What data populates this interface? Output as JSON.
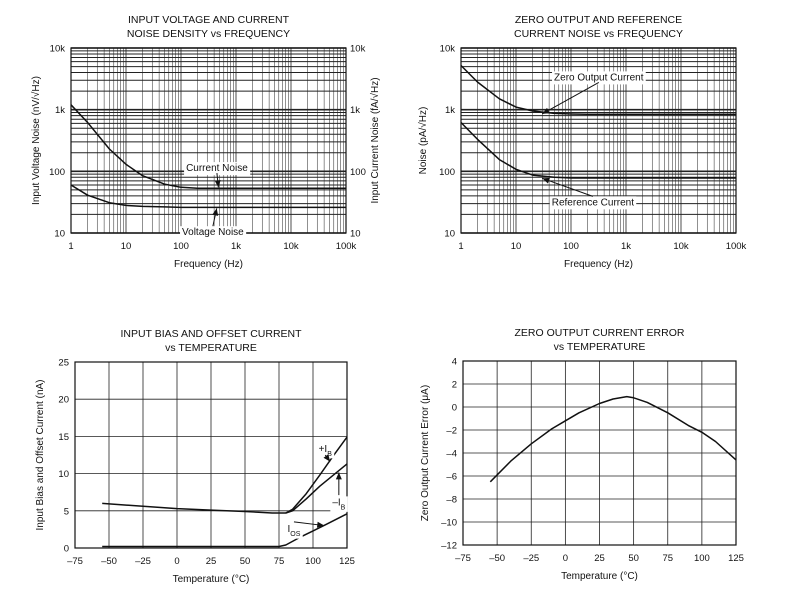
{
  "chart_data": [
    {
      "type": "line",
      "title": "INPUT VOLTAGE AND CURRENT",
      "subtitle": "NOISE DENSITY vs FREQUENCY",
      "xlabel": "Frequency (Hz)",
      "ylabel": "Input Voltage Noise (nV/√Hz)",
      "ylabel_right": "Input Current Noise (fA/√Hz)",
      "xscale": "log",
      "yscale": "log",
      "xlim": [
        1,
        100000
      ],
      "ylim": [
        10,
        10000
      ],
      "xticks": [
        {
          "v": 1,
          "label": "1"
        },
        {
          "v": 10,
          "label": "10"
        },
        {
          "v": 100,
          "label": "100"
        },
        {
          "v": 1000,
          "label": "1k"
        },
        {
          "v": 10000,
          "label": "10k"
        },
        {
          "v": 100000,
          "label": "100k"
        }
      ],
      "yticks": [
        {
          "v": 10,
          "label": "10"
        },
        {
          "v": 100,
          "label": "100"
        },
        {
          "v": 1000,
          "label": "1k"
        },
        {
          "v": 10000,
          "label": "10k"
        }
      ],
      "yticks_right": [
        {
          "v": 10,
          "label": "10"
        },
        {
          "v": 100,
          "label": "100"
        },
        {
          "v": 1000,
          "label": "1k"
        },
        {
          "v": 10000,
          "label": "10k"
        }
      ],
      "grid": true,
      "series": [
        {
          "name": "Current Noise",
          "x": [
            1,
            2,
            5,
            10,
            20,
            50,
            100,
            200,
            300,
            1000,
            10000,
            100000
          ],
          "y": [
            1200,
            620,
            230,
            130,
            85,
            62,
            55,
            53,
            53,
            53,
            53,
            53
          ]
        },
        {
          "name": "Voltage Noise",
          "x": [
            1,
            2,
            5,
            10,
            20,
            50,
            100,
            200,
            1000,
            10000,
            100000
          ],
          "y": [
            60,
            41,
            31,
            28,
            27,
            26.5,
            26,
            26,
            26,
            26,
            26
          ]
        }
      ],
      "annotations": [
        {
          "text": "Current Noise",
          "series": 0,
          "arrow_x": 480,
          "arrow_y": 53,
          "label_x": 450,
          "label_y": 115
        },
        {
          "text": "Voltage Noise",
          "series": 1,
          "arrow_x": 450,
          "arrow_y": 26,
          "label_x": 380,
          "label_y": 10.5
        }
      ]
    },
    {
      "type": "line",
      "title": "ZERO OUTPUT AND REFERENCE",
      "subtitle": "CURRENT NOISE vs FREQUENCY",
      "xlabel": "Frequency (Hz)",
      "ylabel": "Noise (pA/√Hz)",
      "xscale": "log",
      "yscale": "log",
      "xlim": [
        1,
        100000
      ],
      "ylim": [
        10,
        10000
      ],
      "xticks": [
        {
          "v": 1,
          "label": "1"
        },
        {
          "v": 10,
          "label": "10"
        },
        {
          "v": 100,
          "label": "100"
        },
        {
          "v": 1000,
          "label": "1k"
        },
        {
          "v": 10000,
          "label": "10k"
        },
        {
          "v": 100000,
          "label": "100k"
        }
      ],
      "yticks": [
        {
          "v": 10,
          "label": "10"
        },
        {
          "v": 100,
          "label": "100"
        },
        {
          "v": 1000,
          "label": "1k"
        },
        {
          "v": 10000,
          "label": "10k"
        }
      ],
      "grid": true,
      "series": [
        {
          "name": "Zero Output Current",
          "x": [
            1,
            2,
            5,
            10,
            20,
            50,
            100,
            200,
            1000,
            10000,
            100000
          ],
          "y": [
            5200,
            2800,
            1500,
            1100,
            950,
            870,
            850,
            840,
            840,
            840,
            840
          ]
        },
        {
          "name": "Reference Current",
          "x": [
            1,
            2,
            5,
            10,
            20,
            50,
            100,
            200,
            1000,
            10000,
            100000
          ],
          "y": [
            620,
            330,
            155,
            108,
            87,
            80,
            78,
            78,
            78,
            78,
            78
          ]
        }
      ],
      "annotations": [
        {
          "text": "Zero Output Current",
          "series": 0,
          "arrow_x": 29,
          "arrow_y": 840,
          "label_x": 320,
          "label_y": 3400
        },
        {
          "text": "Reference Current",
          "series": 1,
          "arrow_x": 29,
          "arrow_y": 78,
          "label_x": 250,
          "label_y": 32
        }
      ]
    },
    {
      "type": "line",
      "title": "INPUT BIAS AND OFFSET CURRENT",
      "subtitle": "vs TEMPERATURE",
      "xlabel": "Temperature (°C)",
      "ylabel": "Input Bias and Offset Current (nA)",
      "xlim": [
        -75,
        125
      ],
      "ylim": [
        0,
        25
      ],
      "xticks": [
        {
          "v": -75,
          "label": "–75"
        },
        {
          "v": -50,
          "label": "–50"
        },
        {
          "v": -25,
          "label": "–25"
        },
        {
          "v": 0,
          "label": "0"
        },
        {
          "v": 25,
          "label": "25"
        },
        {
          "v": 50,
          "label": "50"
        },
        {
          "v": 75,
          "label": "75"
        },
        {
          "v": 100,
          "label": "100"
        },
        {
          "v": 125,
          "label": "125"
        }
      ],
      "yticks": [
        {
          "v": 0,
          "label": "0"
        },
        {
          "v": 5,
          "label": "5"
        },
        {
          "v": 10,
          "label": "10"
        },
        {
          "v": 15,
          "label": "15"
        },
        {
          "v": 20,
          "label": "20"
        },
        {
          "v": 25,
          "label": "25"
        }
      ],
      "grid": true,
      "series": [
        {
          "name": "+IB",
          "x": [
            -55,
            -25,
            0,
            25,
            50,
            70,
            80,
            85,
            95,
            105,
            115,
            125
          ],
          "y": [
            6.0,
            5.6,
            5.3,
            5.1,
            4.9,
            4.7,
            4.7,
            5.2,
            7.3,
            9.8,
            12.4,
            14.9
          ]
        },
        {
          "name": "–IB",
          "x": [
            80,
            85,
            95,
            105,
            115,
            125
          ],
          "y": [
            4.7,
            5.0,
            6.6,
            8.3,
            9.8,
            11.3
          ]
        },
        {
          "name": "IOS",
          "x": [
            -55,
            -25,
            0,
            25,
            50,
            75,
            80,
            90,
            100,
            110,
            125
          ],
          "y": [
            0.2,
            0.2,
            0.2,
            0.2,
            0.2,
            0.2,
            0.4,
            1.4,
            2.3,
            3.2,
            4.6
          ]
        }
      ],
      "annotations": [
        {
          "text": "+I",
          "sub": "B",
          "series": 0,
          "arrow_x": 113,
          "arrow_y": 11.5,
          "label_x": 109,
          "label_y": 13.4
        },
        {
          "text": "–I",
          "sub": "B",
          "series": 1,
          "arrow_x": 119,
          "arrow_y": 10.3,
          "label_x": 119,
          "label_y": 6.2
        },
        {
          "text": "I",
          "sub": "OS",
          "series": 2,
          "arrow_x": 109,
          "arrow_y": 3.0,
          "label_x": 86,
          "label_y": 2.6
        }
      ]
    },
    {
      "type": "line",
      "title": "ZERO OUTPUT CURRENT ERROR",
      "subtitle": "vs TEMPERATURE",
      "xlabel": "Temperature (°C)",
      "ylabel": "Zero Output Current Error (μA)",
      "xlim": [
        -75,
        125
      ],
      "ylim": [
        -12,
        4
      ],
      "xticks": [
        {
          "v": -75,
          "label": "–75"
        },
        {
          "v": -50,
          "label": "–50"
        },
        {
          "v": -25,
          "label": "–25"
        },
        {
          "v": 0,
          "label": "0"
        },
        {
          "v": 25,
          "label": "25"
        },
        {
          "v": 50,
          "label": "50"
        },
        {
          "v": 75,
          "label": "75"
        },
        {
          "v": 100,
          "label": "100"
        },
        {
          "v": 125,
          "label": "125"
        }
      ],
      "yticks": [
        {
          "v": -12,
          "label": "–12"
        },
        {
          "v": -10,
          "label": "–10"
        },
        {
          "v": -8,
          "label": "–8"
        },
        {
          "v": -6,
          "label": "–6"
        },
        {
          "v": -4,
          "label": "–4"
        },
        {
          "v": -2,
          "label": "–2"
        },
        {
          "v": 0,
          "label": "0"
        },
        {
          "v": 2,
          "label": "2"
        },
        {
          "v": 4,
          "label": "4"
        }
      ],
      "grid": true,
      "series": [
        {
          "name": "",
          "x": [
            -55,
            -40,
            -25,
            -10,
            0,
            10,
            25,
            35,
            45,
            50,
            60,
            75,
            90,
            100,
            110,
            125
          ],
          "y": [
            -6.5,
            -4.7,
            -3.2,
            -1.9,
            -1.2,
            -0.5,
            0.3,
            0.7,
            0.9,
            0.8,
            0.4,
            -0.5,
            -1.6,
            -2.2,
            -3.0,
            -4.6
          ]
        }
      ],
      "annotations": []
    }
  ]
}
